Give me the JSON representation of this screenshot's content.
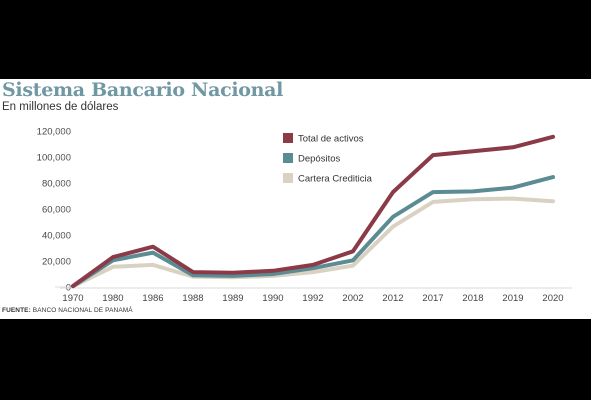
{
  "header": {
    "title": "Sistema Bancario Nacional",
    "subtitle": "En millones de dólares"
  },
  "footer": {
    "source_label": "FUENTE:",
    "source_text": " BANCO NACIONAL DE PANAMÁ"
  },
  "chart_data": {
    "type": "line",
    "title": "Sistema Bancario Nacional",
    "subtitle": "En millones de dólares",
    "xlabel": "",
    "ylabel": "",
    "x": [
      "1970",
      "1980",
      "1986",
      "1988",
      "1989",
      "1990",
      "1992",
      "2002",
      "2012",
      "2017",
      "2018",
      "2019",
      "2020"
    ],
    "y_ticks": [
      "0",
      "20,000",
      "40,000",
      "60,000",
      "80,000",
      "100,000",
      "120,000"
    ],
    "y_tick_values": [
      0,
      20000,
      40000,
      60000,
      80000,
      100000,
      120000
    ],
    "ylim": [
      0,
      120000
    ],
    "grid": false,
    "legend_position": "top-right",
    "series": [
      {
        "name": "Total de activos",
        "color": "#8b3a47",
        "values": [
          800,
          23000,
          31000,
          11500,
          11000,
          12500,
          17000,
          27500,
          73000,
          101500,
          104500,
          107500,
          115500
        ]
      },
      {
        "name": "Depósitos",
        "color": "#5b8b93",
        "values": [
          600,
          20500,
          26500,
          9000,
          8500,
          10000,
          14500,
          20500,
          54000,
          73000,
          73500,
          76500,
          84500
        ]
      },
      {
        "name": "Cartera Crediticia",
        "color": "#d9d2c3",
        "values": [
          500,
          15500,
          17000,
          8000,
          7500,
          8500,
          11500,
          16500,
          46500,
          65500,
          67500,
          68000,
          66000
        ]
      }
    ]
  }
}
